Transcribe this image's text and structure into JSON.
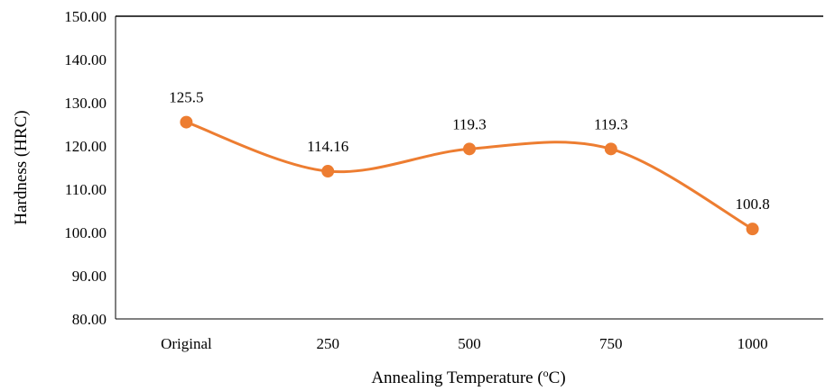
{
  "chart_data": {
    "type": "line",
    "categories": [
      "Original",
      "250",
      "500",
      "750",
      "1000"
    ],
    "series": [
      {
        "values": [
          125.5,
          114.16,
          119.3,
          119.3,
          100.8
        ],
        "labels": [
          "125.5",
          "114.16",
          "119.3",
          "119.3",
          "100.8"
        ],
        "color": "#ED7D31",
        "smooth": true,
        "markers": true
      }
    ],
    "xlabel": "Annealing Temperature (",
    "xlabel_sup": "o",
    "xlabel_suffix": "C)",
    "ylabel": "Hardness (HRC)",
    "ylim": [
      80,
      150
    ],
    "ytick_step": 10,
    "ytick_labels": [
      "80.00",
      "90.00",
      "100.00",
      "110.00",
      "120.00",
      "130.00",
      "140.00",
      "150.00"
    ],
    "grid": false
  }
}
